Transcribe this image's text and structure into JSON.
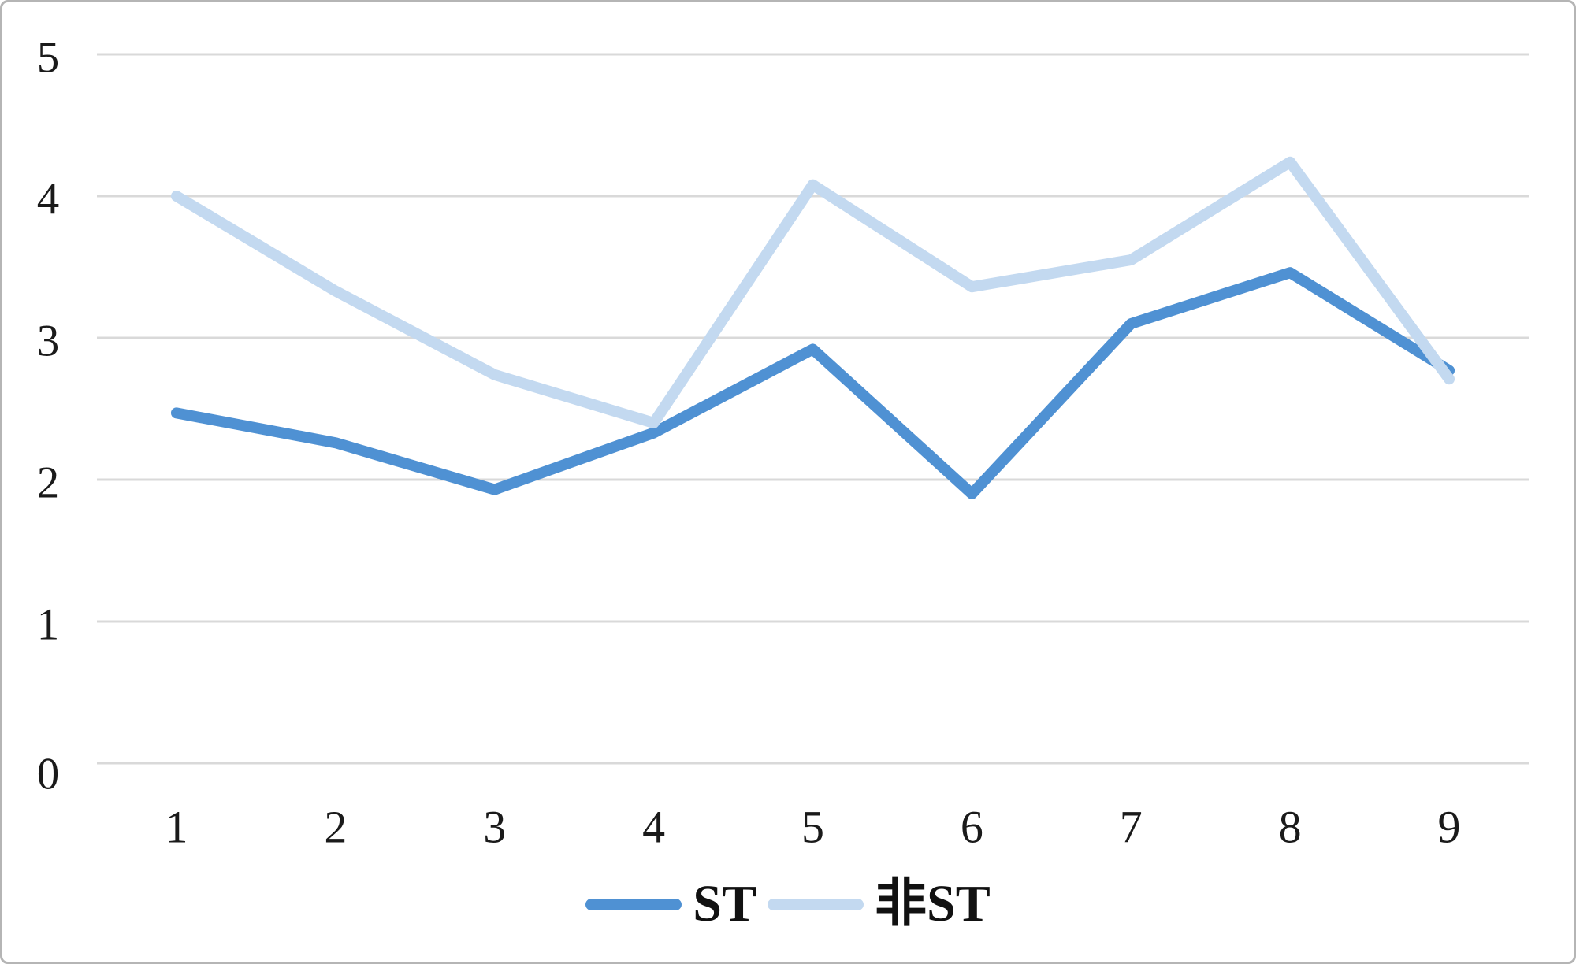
{
  "chart_data": {
    "type": "line",
    "title": "",
    "xlabel": "",
    "ylabel": "",
    "categories": [
      "1",
      "2",
      "3",
      "4",
      "5",
      "6",
      "7",
      "8",
      "9"
    ],
    "series": [
      {
        "name": "ST",
        "color": "#4f91d3",
        "values": [
          2.47,
          2.26,
          1.93,
          2.33,
          2.92,
          1.9,
          3.1,
          3.46,
          2.77
        ]
      },
      {
        "name": "非ST",
        "color": "#c3d9f0",
        "values": [
          4.0,
          3.33,
          2.74,
          2.4,
          4.08,
          3.36,
          3.55,
          4.24,
          2.71
        ]
      }
    ],
    "ylim": [
      0,
      5
    ],
    "yticks": [
      0,
      1,
      2,
      3,
      4,
      5
    ],
    "grid": true,
    "legend_position": "bottom"
  },
  "colors": {
    "grid": "#d9d9d9",
    "frame_border": "#b5b5b5",
    "tick_text": "#1a1a1a"
  }
}
